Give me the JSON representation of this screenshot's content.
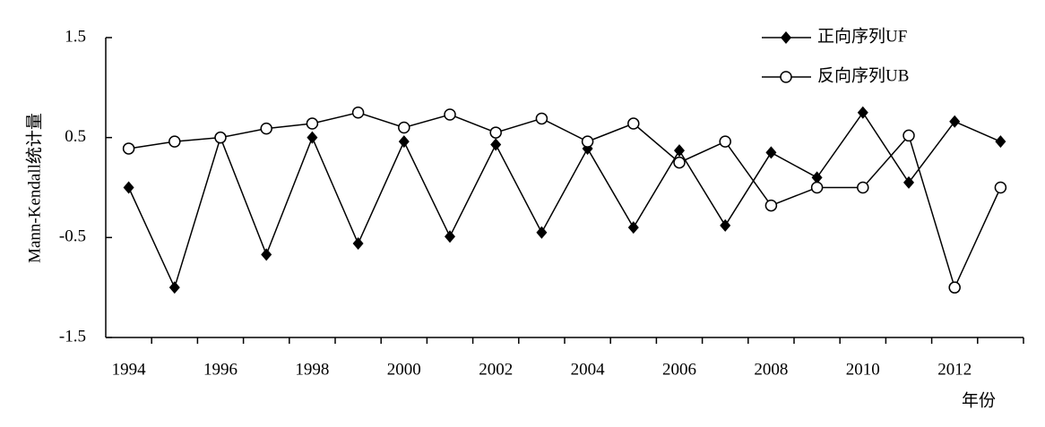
{
  "chart_data": {
    "type": "line",
    "y_label": "Mann-Kendall统计量",
    "x_label": "年份",
    "categories": [
      "1994",
      null,
      "1996",
      null,
      "1998",
      null,
      "2000",
      null,
      "2002",
      null,
      "2004",
      null,
      "2006",
      null,
      "2008",
      null,
      "2010",
      null,
      "2012",
      null
    ],
    "series": [
      {
        "name": "正向序列UF",
        "color": "#000000",
        "marker": "diamond",
        "values": [
          0.0,
          -1.0,
          0.5,
          -0.67,
          0.5,
          -0.56,
          0.46,
          -0.49,
          0.43,
          -0.45,
          0.39,
          -0.4,
          0.37,
          -0.38,
          0.35,
          0.1,
          0.75,
          0.05,
          0.66,
          0.46
        ]
      },
      {
        "name": "反向序列UB",
        "color": "#000000",
        "marker": "circle",
        "values": [
          0.39,
          0.46,
          0.5,
          0.59,
          0.64,
          0.75,
          0.6,
          0.73,
          0.55,
          0.69,
          0.46,
          0.64,
          0.25,
          0.46,
          -0.18,
          0.0,
          0.0,
          0.52,
          -1.0,
          0.0
        ]
      }
    ],
    "ylim": [
      -1.5,
      1.5
    ],
    "yticks": [
      1.5,
      0.5,
      -0.5,
      -1.5
    ],
    "legend": "top-right"
  }
}
